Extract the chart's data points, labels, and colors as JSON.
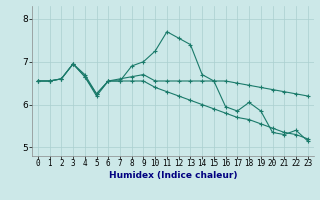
{
  "title": "",
  "xlabel": "Humidex (Indice chaleur)",
  "ylabel": "",
  "background_color": "#cce8e8",
  "grid_color": "#aacfcf",
  "line_color": "#1a7a6a",
  "xlim": [
    -0.5,
    23.5
  ],
  "ylim": [
    4.8,
    8.3
  ],
  "xticks": [
    0,
    1,
    2,
    3,
    4,
    5,
    6,
    7,
    8,
    9,
    10,
    11,
    12,
    13,
    14,
    15,
    16,
    17,
    18,
    19,
    20,
    21,
    22,
    23
  ],
  "yticks": [
    5,
    6,
    7,
    8
  ],
  "line1_y": [
    6.55,
    6.55,
    6.6,
    6.95,
    6.65,
    6.2,
    6.55,
    6.55,
    6.9,
    7.0,
    7.25,
    7.7,
    7.55,
    7.4,
    6.7,
    6.55,
    5.95,
    5.85,
    6.05,
    5.85,
    5.35,
    5.3,
    5.4,
    5.15
  ],
  "line2_y": [
    6.55,
    6.55,
    6.6,
    6.95,
    6.65,
    6.25,
    6.55,
    6.55,
    6.55,
    6.55,
    6.4,
    6.3,
    6.2,
    6.1,
    6.0,
    5.9,
    5.8,
    5.7,
    5.65,
    5.55,
    5.45,
    5.35,
    5.3,
    5.2
  ],
  "line3_y": [
    6.55,
    6.55,
    6.6,
    6.95,
    6.7,
    6.25,
    6.55,
    6.6,
    6.65,
    6.7,
    6.55,
    6.55,
    6.55,
    6.55,
    6.55,
    6.55,
    6.55,
    6.5,
    6.45,
    6.4,
    6.35,
    6.3,
    6.25,
    6.2
  ],
  "xlabel_color": "#000080",
  "xlabel_fontsize": 6.5,
  "tick_fontsize": 5.5,
  "ytick_fontsize": 6.5
}
